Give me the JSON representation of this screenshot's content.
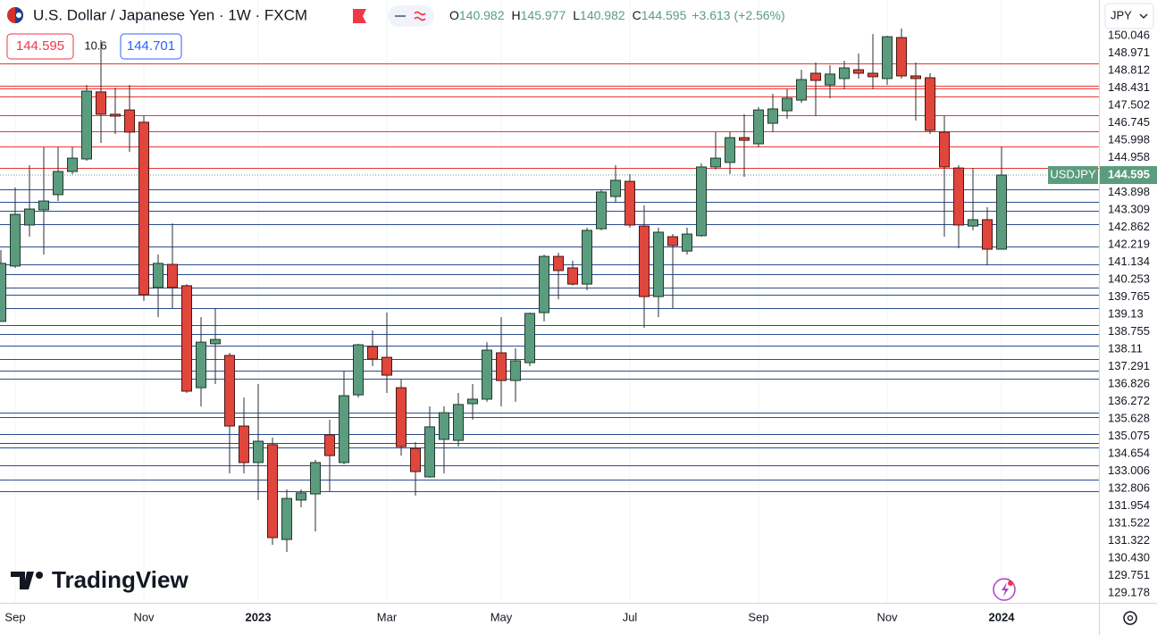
{
  "chart_data": {
    "type": "candlestick",
    "title": "U.S. Dollar / Japanese Yen · 1W · FXCM",
    "currency": "JPY",
    "brand": "TradingView",
    "ohlc_labels": [
      "O",
      "H",
      "L",
      "C"
    ],
    "change": "+3.613 (+2.56%)",
    "spread": 10.6,
    "ask": 144.701,
    "up_color": "#5c9c7e",
    "down_color": "#e0463c",
    "categories": [
      null,
      "Sep",
      null,
      null,
      null,
      null,
      null,
      null,
      null,
      null,
      "Nov",
      null,
      null,
      null,
      null,
      null,
      null,
      null,
      "2023",
      null,
      null,
      null,
      null,
      null,
      null,
      null,
      null,
      "Mar",
      null,
      null,
      null,
      null,
      null,
      null,
      null,
      "May",
      null,
      null,
      null,
      null,
      null,
      null,
      null,
      null,
      "Jul",
      null,
      null,
      null,
      null,
      null,
      null,
      null,
      null,
      "Sep",
      null,
      null,
      null,
      null,
      null,
      null,
      null,
      null,
      "Nov",
      null,
      null,
      null,
      null,
      null,
      null,
      null,
      "2024"
    ],
    "series": [
      {
        "name": "USDJPY",
        "open": [
          137.46,
          140.16,
          142.16,
          142.9,
          143.64,
          144.77,
          145.38,
          148.65,
          147.56,
          147.77,
          147.17,
          139.11,
          140.24,
          139.2,
          134.23,
          136.37,
          135.8,
          132.36,
          130.58,
          131.45,
          126.83,
          128.75,
          129.05,
          131.93,
          130.58,
          133.88,
          136.24,
          135.71,
          134.23,
          131.27,
          129.88,
          131.71,
          131.66,
          133.45,
          133.67,
          135.93,
          134.58,
          135.45,
          137.89,
          140.63,
          140.07,
          139.28,
          141.98,
          143.55,
          144.29,
          142.11,
          138.67,
          141.59,
          140.89,
          141.64,
          144.99,
          145.21,
          146.42,
          146.12,
          147.12,
          147.73,
          148.25,
          149.56,
          148.99,
          149.3,
          149.73,
          149.56,
          149.3,
          151.3,
          149.43,
          149.34,
          146.69,
          144.94,
          142.11,
          142.42,
          140.982
        ],
        "high": [
          140.94,
          143.99,
          145.08,
          145.95,
          145.95,
          145.95,
          148.99,
          151.17,
          148.86,
          148.99,
          147.47,
          140.72,
          142.24,
          139.28,
          137.67,
          138.11,
          135.93,
          133.75,
          134.41,
          131.8,
          129.27,
          129.27,
          130.71,
          132.67,
          135.06,
          136.37,
          137.02,
          137.89,
          134.63,
          131.58,
          133.32,
          133.32,
          133.97,
          134.41,
          136.45,
          137.67,
          136.15,
          137.89,
          140.72,
          140.81,
          140.42,
          142.03,
          143.86,
          145.08,
          144.64,
          143.12,
          142.03,
          141.72,
          142.03,
          145.16,
          146.69,
          146.69,
          147.56,
          147.91,
          148.56,
          148.78,
          149.73,
          150.08,
          149.95,
          150.17,
          150.52,
          151.47,
          151.39,
          151.74,
          150.08,
          149.56,
          147.47,
          145.08,
          144.94,
          143.03,
          145.977
        ],
        "low": [
          137.46,
          140.07,
          141.59,
          140.72,
          143.33,
          144.64,
          145.29,
          146.16,
          146.6,
          145.73,
          138.46,
          137.67,
          138.11,
          133.97,
          133.32,
          134.41,
          130.05,
          130.05,
          128.75,
          126.57,
          126.22,
          128.4,
          127.22,
          129.18,
          130.49,
          133.75,
          135.28,
          133.97,
          130.92,
          128.97,
          129.84,
          130.05,
          131.36,
          132.67,
          133.54,
          133.32,
          133.54,
          135.28,
          137.46,
          138.54,
          139.2,
          138.98,
          141.9,
          143.29,
          142.03,
          137.15,
          137.67,
          138.11,
          140.72,
          141.59,
          144.86,
          144.64,
          144.51,
          145.95,
          146.69,
          147.34,
          148.12,
          147.47,
          148.34,
          148.78,
          149.3,
          148.78,
          148.99,
          149.3,
          147.25,
          146.6,
          141.59,
          141.03,
          141.9,
          140.2,
          140.982
        ],
        "close": [
          140.29,
          142.68,
          142.94,
          143.33,
          144.77,
          145.42,
          148.69,
          147.56,
          147.47,
          146.69,
          138.76,
          140.29,
          139.11,
          134.06,
          136.45,
          136.58,
          132.36,
          130.58,
          131.62,
          126.92,
          128.83,
          129.1,
          130.58,
          130.92,
          133.84,
          136.32,
          135.63,
          134.84,
          131.36,
          130.14,
          132.32,
          133.01,
          133.41,
          133.67,
          136.06,
          134.58,
          135.54,
          137.85,
          140.63,
          139.94,
          139.28,
          141.9,
          143.77,
          144.34,
          142.16,
          138.67,
          141.81,
          141.16,
          141.72,
          144.99,
          145.42,
          146.42,
          146.29,
          147.77,
          147.82,
          148.34,
          149.25,
          149.21,
          149.52,
          149.82,
          149.56,
          149.39,
          151.34,
          149.43,
          149.3,
          146.77,
          144.99,
          142.16,
          142.42,
          140.98,
          144.595
        ]
      }
    ],
    "ylim": [
      123.74,
      153.13
    ],
    "resistance": {
      "color": "#e53935",
      "levels": [
        150.046,
        148.971,
        148.812,
        148.431,
        147.502,
        146.745,
        145.998,
        144.958
      ]
    },
    "support": {
      "color": "#2b4c91",
      "levels": [
        143.898,
        143.309,
        142.862,
        142.219,
        141.134,
        140.253,
        139.765,
        139.13,
        138.755,
        138.11,
        137.291,
        136.826,
        136.272,
        135.628,
        135.075,
        134.654,
        133.006,
        132.806,
        131.954,
        131.522,
        131.322,
        {
          "value": 130.43,
          "label": "130.430"
        },
        129.751,
        129.178
      ]
    }
  }
}
